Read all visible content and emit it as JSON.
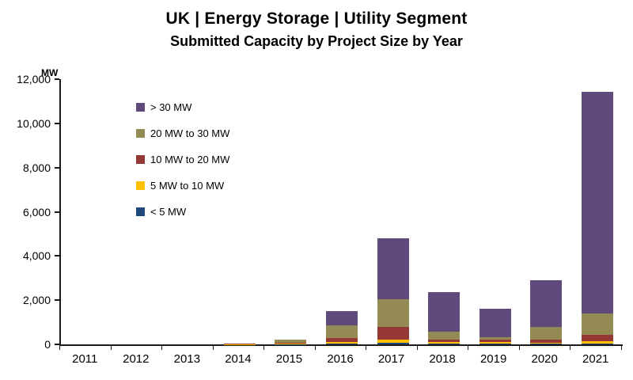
{
  "chart_data": {
    "type": "bar",
    "stacked": true,
    "title": "UK | Energy Storage | Utility Segment",
    "subtitle": "Submitted Capacity by Project Size by Year",
    "unit_label": "MW",
    "xlabel": "",
    "ylabel": "MW",
    "ylim": [
      0,
      12000
    ],
    "ytick_step": 2000,
    "grid": false,
    "legend_position": "inside-top-left",
    "categories": [
      "2011",
      "2012",
      "2013",
      "2014",
      "2015",
      "2016",
      "2017",
      "2018",
      "2019",
      "2020",
      "2021"
    ],
    "series": [
      {
        "name": "< 5 MW",
        "color": "#1f497d",
        "values": [
          0,
          0,
          0,
          0,
          10,
          30,
          80,
          20,
          20,
          20,
          30
        ]
      },
      {
        "name": "5 MW to 10 MW",
        "color": "#ffc000",
        "values": [
          0,
          0,
          0,
          10,
          20,
          90,
          150,
          80,
          80,
          70,
          120
        ]
      },
      {
        "name": "10 MW to 20 MW",
        "color": "#953735",
        "values": [
          0,
          0,
          0,
          30,
          30,
          150,
          550,
          130,
          120,
          140,
          280
        ]
      },
      {
        "name": "20 MW to 30 MW",
        "color": "#948a54",
        "values": [
          0,
          0,
          0,
          0,
          150,
          600,
          1250,
          350,
          120,
          550,
          980
        ]
      },
      {
        "name": "> 30 MW",
        "color": "#604a7b",
        "values": [
          0,
          0,
          0,
          0,
          0,
          650,
          2770,
          1800,
          1280,
          2140,
          10000
        ]
      }
    ],
    "legend_order": [
      "> 30 MW",
      "20 MW to 30 MW",
      "10 MW to 20 MW",
      "5 MW to 10 MW",
      "< 5 MW"
    ]
  }
}
